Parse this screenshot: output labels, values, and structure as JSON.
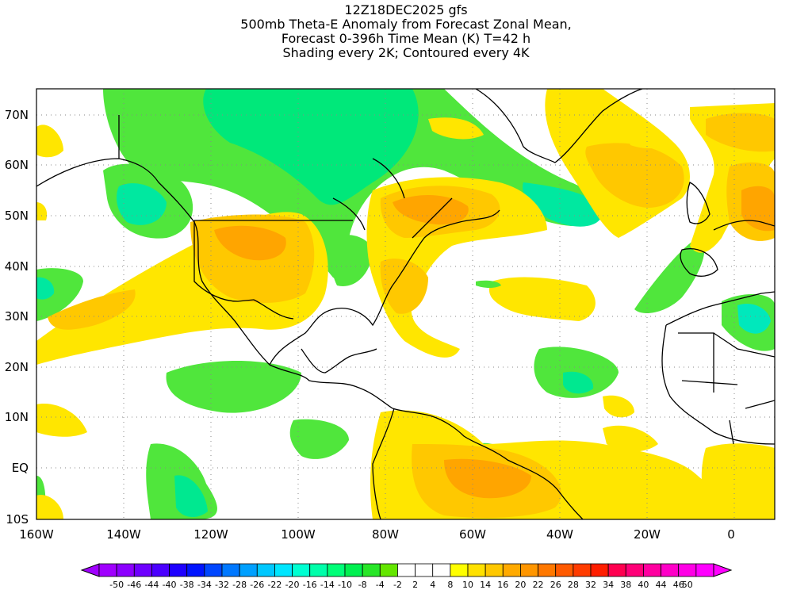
{
  "title": {
    "line1": "12Z18DEC2025 gfs",
    "line2": "500mb Theta-E Anomaly from Forecast Zonal Mean,",
    "line3": "Forecast 0-396h Time Mean (K) T=42 h",
    "line4": "Shading every 2K; Contoured every 4K"
  },
  "map": {
    "lat_ticks": [
      "70N",
      "60N",
      "50N",
      "40N",
      "30N",
      "20N",
      "10N",
      "EQ",
      "10S"
    ],
    "lon_ticks": [
      "160W",
      "140W",
      "120W",
      "100W",
      "80W",
      "60W",
      "40W",
      "20W",
      "0"
    ]
  },
  "colorbar": {
    "labels": [
      "-50",
      "-46",
      "-44",
      "-40",
      "-38",
      "-34",
      "-32",
      "-28",
      "-26",
      "-22",
      "-20",
      "-16",
      "-14",
      "-10",
      "-8",
      "-4",
      "-2",
      "2",
      "4",
      "8",
      "10",
      "14",
      "16",
      "20",
      "22",
      "26",
      "28",
      "32",
      "34",
      "38",
      "40",
      "44",
      "46",
      "50"
    ],
    "colors": [
      "#a000ff",
      "#8c00ff",
      "#6e00ff",
      "#4b00ff",
      "#1e00ff",
      "#0014ff",
      "#0046ff",
      "#0078ff",
      "#00a0ff",
      "#00c8ff",
      "#00e6ff",
      "#00ffd2",
      "#00ffaa",
      "#00ff78",
      "#00f050",
      "#28e628",
      "#64e600",
      "#ffffff",
      "#ffffff",
      "#ffffff",
      "#ffff00",
      "#ffe100",
      "#ffc800",
      "#ffaa00",
      "#ff9600",
      "#ff7800",
      "#ff5a00",
      "#ff3c00",
      "#ff1e00",
      "#ff0050",
      "#ff0078",
      "#ff00a0",
      "#ff00c8",
      "#ff00e6",
      "#ff00ff"
    ]
  }
}
